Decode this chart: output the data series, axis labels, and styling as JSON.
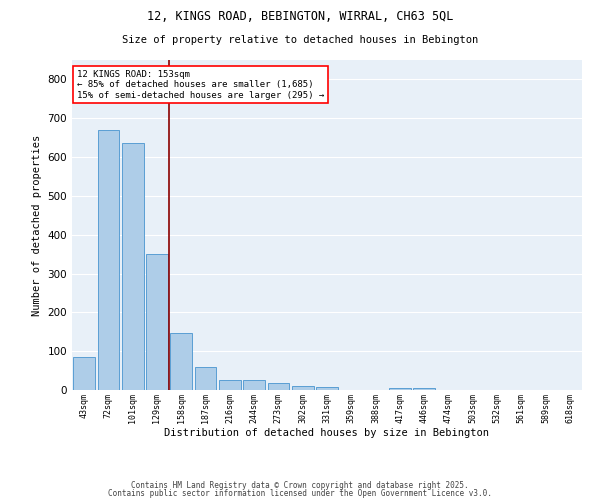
{
  "title1": "12, KINGS ROAD, BEBINGTON, WIRRAL, CH63 5QL",
  "title2": "Size of property relative to detached houses in Bebington",
  "xlabel": "Distribution of detached houses by size in Bebington",
  "ylabel": "Number of detached properties",
  "footnote1": "Contains HM Land Registry data © Crown copyright and database right 2025.",
  "footnote2": "Contains public sector information licensed under the Open Government Licence v3.0.",
  "categories": [
    "43sqm",
    "72sqm",
    "101sqm",
    "129sqm",
    "158sqm",
    "187sqm",
    "216sqm",
    "244sqm",
    "273sqm",
    "302sqm",
    "331sqm",
    "359sqm",
    "388sqm",
    "417sqm",
    "446sqm",
    "474sqm",
    "503sqm",
    "532sqm",
    "561sqm",
    "589sqm",
    "618sqm"
  ],
  "values": [
    85,
    670,
    635,
    350,
    148,
    60,
    27,
    25,
    17,
    10,
    7,
    0,
    0,
    5,
    5,
    0,
    0,
    0,
    0,
    0,
    0
  ],
  "bar_color": "#aecde8",
  "bar_edge_color": "#5a9fd4",
  "background_color": "#e8f0f8",
  "grid_color": "#c8d8e8",
  "red_line_x": 3.5,
  "annotation_line1": "12 KINGS ROAD: 153sqm",
  "annotation_line2": "← 85% of detached houses are smaller (1,685)",
  "annotation_line3": "15% of semi-detached houses are larger (295) →",
  "ylim": [
    0,
    850
  ],
  "yticks": [
    0,
    100,
    200,
    300,
    400,
    500,
    600,
    700,
    800
  ]
}
